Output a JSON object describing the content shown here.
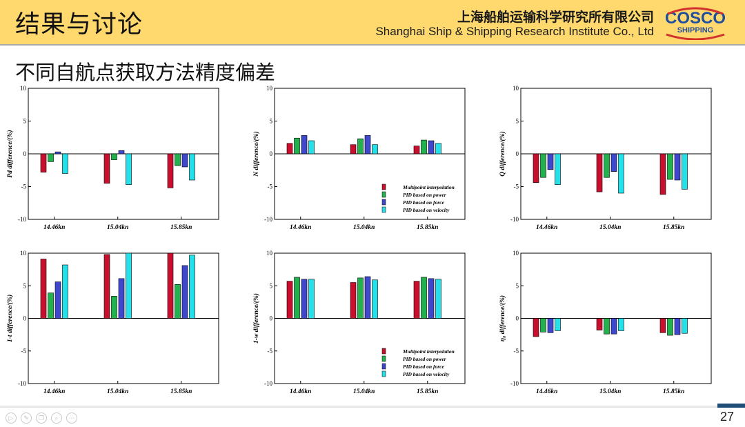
{
  "header": {
    "title": "结果与讨论",
    "company_cn": "上海船舶运输科学研究所有限公司",
    "company_en": "Shanghai Ship & Shipping Research Institute Co., Ltd",
    "logo_top": "COSCO",
    "logo_bottom": "SHIPPING",
    "brand_blue": "#1f4e9e",
    "brand_red": "#d0312d",
    "banner_color": "#ffd96e"
  },
  "subtitle": "不同自航点获取方法精度偏差",
  "page_number": "27",
  "nav_icons": [
    "play-icon",
    "pen-icon",
    "copy-icon",
    "zoom-icon",
    "more-icon"
  ],
  "legend": {
    "entries": [
      "Multipoint interpolation",
      "PID based on power",
      "PID based on force",
      "PID based on velocity"
    ],
    "colors": [
      "#c8102e",
      "#22b14c",
      "#3f48cc",
      "#25e0e8"
    ],
    "placement": "bottom-right"
  },
  "chart_data": [
    {
      "type": "bar",
      "ylabel": "Pd difference/(%)",
      "categories": [
        "14.46kn",
        "15.04kn",
        "15.85kn"
      ],
      "ylim": [
        -10,
        10
      ],
      "yticks": [
        -10,
        -5,
        0,
        5,
        10
      ],
      "legend": false,
      "series": [
        {
          "name": "Multipoint interpolation",
          "values": [
            -2.8,
            -4.5,
            -5.2
          ]
        },
        {
          "name": "PID based on power",
          "values": [
            -1.2,
            -0.9,
            -1.8
          ]
        },
        {
          "name": "PID based on force",
          "values": [
            0.3,
            0.5,
            -2.0
          ]
        },
        {
          "name": "PID based on velocity",
          "values": [
            -3.0,
            -4.7,
            -4.0
          ]
        }
      ]
    },
    {
      "type": "bar",
      "ylabel": "N difference/(%)",
      "categories": [
        "14.46kn",
        "15.04kn",
        "15.85kn"
      ],
      "ylim": [
        -10,
        10
      ],
      "yticks": [
        -10,
        -5,
        0,
        5,
        10
      ],
      "legend": true,
      "series": [
        {
          "name": "Multipoint interpolation",
          "values": [
            1.6,
            1.4,
            1.2
          ]
        },
        {
          "name": "PID based on power",
          "values": [
            2.4,
            2.3,
            2.1
          ]
        },
        {
          "name": "PID based on force",
          "values": [
            2.8,
            2.8,
            2.0
          ]
        },
        {
          "name": "PID based on velocity",
          "values": [
            2.0,
            1.4,
            1.6
          ]
        }
      ]
    },
    {
      "type": "bar",
      "ylabel": "Q difference/(%)",
      "categories": [
        "14.46kn",
        "15.04kn",
        "15.85kn"
      ],
      "ylim": [
        -10,
        10
      ],
      "yticks": [
        -10,
        -5,
        0,
        5,
        10
      ],
      "legend": false,
      "series": [
        {
          "name": "Multipoint interpolation",
          "values": [
            -4.4,
            -5.8,
            -6.2
          ]
        },
        {
          "name": "PID based on power",
          "values": [
            -3.6,
            -3.6,
            -3.9
          ]
        },
        {
          "name": "PID based on force",
          "values": [
            -2.4,
            -2.7,
            -4.0
          ]
        },
        {
          "name": "PID based on velocity",
          "values": [
            -4.7,
            -6.0,
            -5.4
          ]
        }
      ]
    },
    {
      "type": "bar",
      "ylabel": "1-t difference/(%)",
      "categories": [
        "14.46kn",
        "15.04kn",
        "15.85kn"
      ],
      "ylim": [
        -10,
        10
      ],
      "yticks": [
        -10,
        -5,
        0,
        5,
        10
      ],
      "legend": false,
      "series": [
        {
          "name": "Multipoint interpolation",
          "values": [
            9.1,
            9.8,
            10.0
          ]
        },
        {
          "name": "PID based on power",
          "values": [
            3.9,
            3.4,
            5.2
          ]
        },
        {
          "name": "PID based on force",
          "values": [
            5.6,
            6.1,
            8.1
          ]
        },
        {
          "name": "PID based on velocity",
          "values": [
            8.2,
            10.0,
            9.7
          ]
        }
      ]
    },
    {
      "type": "bar",
      "ylabel": "1-w difference/(%)",
      "categories": [
        "14.46kn",
        "15.04kn",
        "15.85kn"
      ],
      "ylim": [
        -10,
        10
      ],
      "yticks": [
        -10,
        -5,
        0,
        5,
        10
      ],
      "legend": true,
      "series": [
        {
          "name": "Multipoint interpolation",
          "values": [
            5.7,
            5.5,
            5.7
          ]
        },
        {
          "name": "PID based on power",
          "values": [
            6.3,
            6.2,
            6.3
          ]
        },
        {
          "name": "PID based on force",
          "values": [
            6.0,
            6.4,
            6.1
          ]
        },
        {
          "name": "PID based on velocity",
          "values": [
            6.0,
            5.9,
            6.0
          ]
        }
      ]
    },
    {
      "type": "bar",
      "ylabel": "η₀ difference/(%)",
      "categories": [
        "14.46kn",
        "15.04kn",
        "15.85kn"
      ],
      "ylim": [
        -10,
        10
      ],
      "yticks": [
        -10,
        -5,
        0,
        5,
        10
      ],
      "legend": false,
      "series": [
        {
          "name": "Multipoint interpolation",
          "values": [
            -2.8,
            -1.8,
            -2.2
          ]
        },
        {
          "name": "PID based on power",
          "values": [
            -2.1,
            -2.4,
            -2.6
          ]
        },
        {
          "name": "PID based on force",
          "values": [
            -2.2,
            -2.4,
            -2.5
          ]
        },
        {
          "name": "PID based on velocity",
          "values": [
            -1.9,
            -1.9,
            -2.3
          ]
        }
      ]
    }
  ]
}
